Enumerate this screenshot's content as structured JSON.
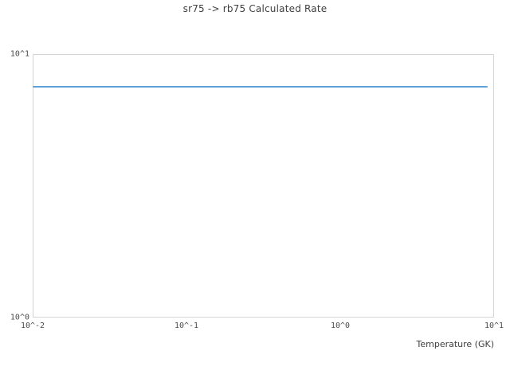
{
  "chart_data": {
    "type": "line",
    "title": "sr75 -> rb75 Calculated Rate",
    "xlabel": "Temperature (GK)",
    "ylabel": "",
    "x_scale": "log",
    "y_scale": "log",
    "xlim": [
      0.01,
      10
    ],
    "ylim": [
      1,
      10
    ],
    "grid": false,
    "legend": "none",
    "x_ticks": [
      {
        "value": 0.01,
        "label": "10^-2"
      },
      {
        "value": 0.1,
        "label": "10^-1"
      },
      {
        "value": 1,
        "label": "10^0"
      },
      {
        "value": 10,
        "label": "10^1"
      }
    ],
    "y_ticks": [
      {
        "value": 1,
        "label": "10^0"
      },
      {
        "value": 10,
        "label": "10^1"
      }
    ],
    "series": [
      {
        "name": "sr75 -> rb75 calculated rate",
        "color": "#5fa0d7",
        "points": [
          [
            0.01,
            7.5
          ],
          [
            9.1,
            7.5
          ]
        ]
      }
    ]
  },
  "colors": {
    "frame": "#d4d4d4",
    "title_text": "#3f3f3f",
    "tick_text": "#4a4a4a",
    "background": "#ffffff"
  }
}
